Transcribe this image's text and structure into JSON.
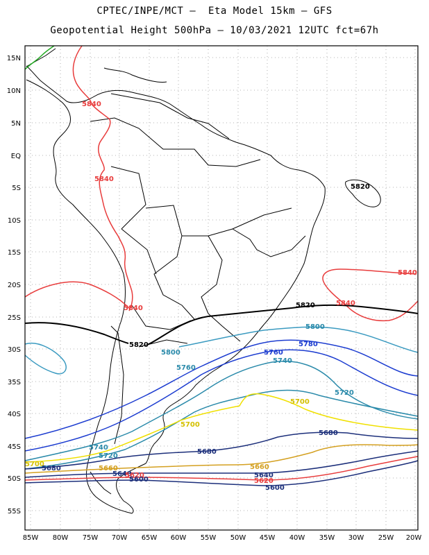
{
  "header": {
    "line1": "CPTEC/INPE/MCT –  Eta Model 15km – GFS",
    "line2": "Geopotential Height 500hPa – 10/03/2021 12UTC fct=67h"
  },
  "axes": {
    "lat_ticks": [
      "15N",
      "10N",
      "5N",
      "EQ",
      "5S",
      "10S",
      "15S",
      "20S",
      "25S",
      "30S",
      "35S",
      "40S",
      "45S",
      "50S",
      "55S"
    ],
    "lon_ticks": [
      "85W",
      "80W",
      "75W",
      "70W",
      "65W",
      "60W",
      "55W",
      "50W",
      "45W",
      "40W",
      "35W",
      "30W",
      "25W",
      "20W"
    ],
    "grid": "dotted"
  },
  "contours": [
    {
      "level": "5620",
      "color": "#e83c3c"
    },
    {
      "level": "5640",
      "color": "#1b2e7a"
    },
    {
      "level": "5660",
      "color": "#d4a020"
    },
    {
      "level": "5680",
      "color": "#1b2e7a"
    },
    {
      "level": "5700",
      "color": "#f0e000"
    },
    {
      "level": "5720",
      "color": "#2a8aaa"
    },
    {
      "level": "5740",
      "color": "#2a8aaa"
    },
    {
      "level": "5760",
      "color": "#1c3cd0"
    },
    {
      "level": "5780",
      "color": "#1c3cd0"
    },
    {
      "level": "5800",
      "color": "#3a9ac0"
    },
    {
      "level": "5820",
      "color": "#000000"
    },
    {
      "level": "5840",
      "color": "#e83c3c"
    }
  ],
  "labels": [
    {
      "text": "5840",
      "color": "#e83c3c"
    },
    {
      "text": "5840",
      "color": "#e83c3c"
    },
    {
      "text": "5820",
      "color": "#000000"
    },
    {
      "text": "5840",
      "color": "#e83c3c"
    },
    {
      "text": "5820",
      "color": "#000000"
    },
    {
      "text": "5840",
      "color": "#e83c3c"
    },
    {
      "text": "5840",
      "color": "#e83c3c"
    },
    {
      "text": "5800",
      "color": "#2a8aaa"
    },
    {
      "text": "5820",
      "color": "#000000"
    },
    {
      "text": "5800",
      "color": "#2a8aaa"
    },
    {
      "text": "5780",
      "color": "#1c3cd0"
    },
    {
      "text": "5760",
      "color": "#1c3cd0"
    },
    {
      "text": "5760",
      "color": "#2a8aaa"
    },
    {
      "text": "5740",
      "color": "#2a8aaa"
    },
    {
      "text": "5720",
      "color": "#2a8aaa"
    },
    {
      "text": "5700",
      "color": "#d4c000"
    },
    {
      "text": "5700",
      "color": "#d4c000"
    },
    {
      "text": "5680",
      "color": "#1b2e7a"
    },
    {
      "text": "5680",
      "color": "#1b2e7a"
    },
    {
      "text": "5740",
      "color": "#2a8aaa"
    },
    {
      "text": "5720",
      "color": "#2a8aaa"
    },
    {
      "text": "5700",
      "color": "#d4c000"
    },
    {
      "text": "5680",
      "color": "#1b2e7a"
    },
    {
      "text": "5660",
      "color": "#d4a020"
    },
    {
      "text": "5640",
      "color": "#1b2e7a"
    },
    {
      "text": "5620",
      "color": "#e83c3c"
    },
    {
      "text": "5600",
      "color": "#1b2e7a"
    },
    {
      "text": "5660",
      "color": "#d4a020"
    },
    {
      "text": "5640",
      "color": "#1b2e7a"
    },
    {
      "text": "5620",
      "color": "#e83c3c"
    },
    {
      "text": "5600",
      "color": "#1b2e7a"
    }
  ]
}
